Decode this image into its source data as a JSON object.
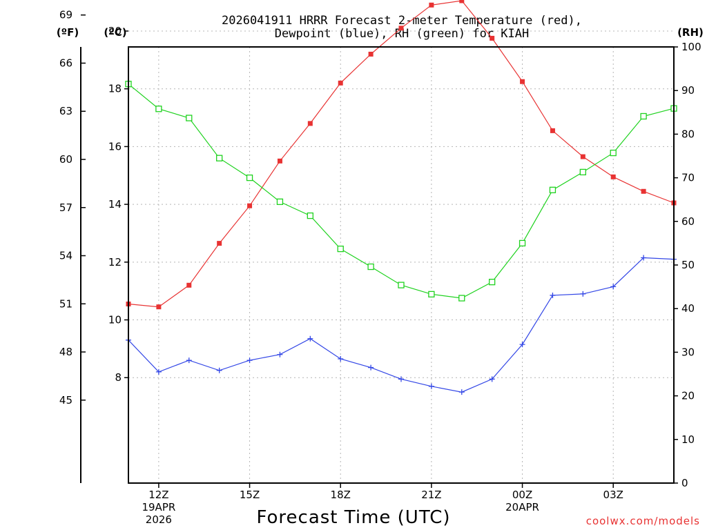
{
  "chart_data": {
    "type": "line",
    "title_lines": [
      "2026041911 HRRR Forecast 2-meter Temperature (red),",
      "Dewpoint (blue), RH (green) for KIAH"
    ],
    "xlabel": "Forecast Time (UTC)",
    "credit": "coolwx.com/models",
    "units": {
      "fahrenheit": "(ºF)",
      "celsius": "(ºC)",
      "rh": "(RH)"
    },
    "x_hours": [
      11,
      12,
      13,
      14,
      15,
      16,
      17,
      18,
      19,
      20,
      21,
      22,
      23,
      24,
      25,
      26,
      27,
      28,
      29
    ],
    "xlim": [
      11,
      29
    ],
    "x_ticks": [
      {
        "hour": 12,
        "lines": [
          "12Z",
          "19APR",
          "2026"
        ]
      },
      {
        "hour": 15,
        "lines": [
          "15Z"
        ]
      },
      {
        "hour": 18,
        "lines": [
          "18Z"
        ]
      },
      {
        "hour": 21,
        "lines": [
          "21Z"
        ]
      },
      {
        "hour": 24,
        "lines": [
          "00Z",
          "20APR"
        ]
      },
      {
        "hour": 27,
        "lines": [
          "03Z"
        ]
      }
    ],
    "celsius_axis": {
      "range": [
        4.35,
        19.45
      ],
      "ticks": [
        8,
        10,
        12,
        14,
        16,
        18,
        20
      ]
    },
    "fahrenheit_ticks": [
      45,
      48,
      51,
      54,
      57,
      60,
      63,
      66,
      69
    ],
    "rh_axis": {
      "range": [
        0,
        100
      ],
      "ticks": [
        0,
        10,
        20,
        30,
        40,
        50,
        60,
        70,
        80,
        90,
        100
      ]
    },
    "series": [
      {
        "name": "Temperature",
        "axis": "celsius",
        "color": "#e83232",
        "marker": "filled-square",
        "values": [
          10.55,
          10.45,
          11.2,
          12.65,
          13.95,
          15.5,
          16.8,
          18.2,
          19.2,
          20.1,
          20.9,
          21.05,
          19.75,
          18.25,
          16.55,
          15.65,
          14.95,
          14.45,
          14.05
        ]
      },
      {
        "name": "Dewpoint",
        "axis": "celsius",
        "color": "#3246e6",
        "marker": "plus",
        "values": [
          9.3,
          8.2,
          8.6,
          8.25,
          8.6,
          8.8,
          9.35,
          8.65,
          8.35,
          7.95,
          7.7,
          7.5,
          7.95,
          9.15,
          10.85,
          10.9,
          11.15,
          12.15,
          12.1
        ]
      },
      {
        "name": "RH",
        "axis": "rh",
        "color": "#1ed21e",
        "marker": "open-square",
        "values": [
          91.5,
          85.8,
          83.7,
          74.5,
          70,
          64.5,
          61.3,
          53.7,
          49.6,
          45.4,
          43.3,
          42.4,
          46.1,
          55,
          67.2,
          71.3,
          75.7,
          84.1,
          85.9
        ]
      }
    ]
  }
}
